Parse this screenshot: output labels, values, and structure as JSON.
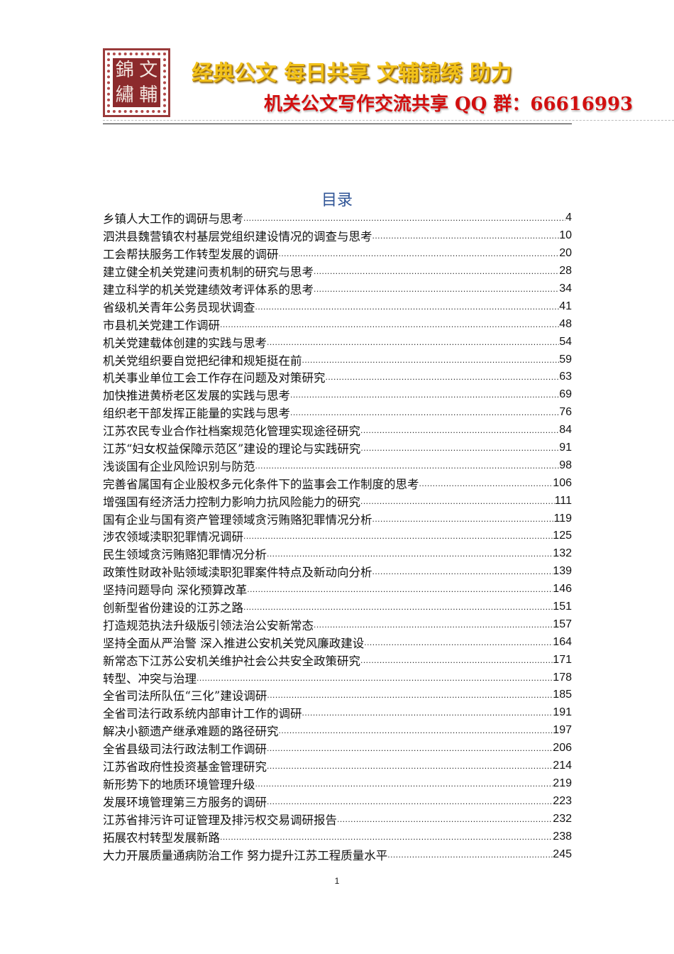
{
  "header": {
    "logo_text": [
      "錦",
      "文",
      "繡",
      "輔"
    ],
    "banner_line1": "经典公文  每日共享  文辅锦绣  助力",
    "banner_line2": "机关公文写作交流共享 QQ 群：66616993",
    "banner_colors": {
      "line1": "#f2c21a",
      "line2": "#d20f0f"
    }
  },
  "toc": {
    "title": "目录",
    "title_color": "#2f5496",
    "entries": [
      {
        "title": "乡镇人大工作的调研与思考",
        "page": "4"
      },
      {
        "title": "泗洪县魏营镇农村基层党组织建设情况的调查与思考",
        "page": "10"
      },
      {
        "title": "工会帮扶服务工作转型发展的调研",
        "page": "20"
      },
      {
        "title": "建立健全机关党建问责机制的研究与思考",
        "page": "28"
      },
      {
        "title": "建立科学的机关党建绩效考评体系的思考",
        "page": "34"
      },
      {
        "title": "省级机关青年公务员现状调查",
        "page": "41"
      },
      {
        "title": "市县机关党建工作调研",
        "page": "48"
      },
      {
        "title": "机关党建载体创建的实践与思考",
        "page": "54"
      },
      {
        "title": "机关党组织要自觉把纪律和规矩挺在前",
        "page": "59"
      },
      {
        "title": "机关事业单位工会工作存在问题及对策研究",
        "page": "63"
      },
      {
        "title": "加快推进黄桥老区发展的实践与思考",
        "page": "69"
      },
      {
        "title": "组织老干部发挥正能量的实践与思考",
        "page": "76"
      },
      {
        "title": "江苏农民专业合作社档案规范化管理实现途径研究",
        "page": "84"
      },
      {
        "title": "江苏“妇女权益保障示范区”建设的理论与实践研究",
        "page": "91"
      },
      {
        "title": "浅谈国有企业风险识别与防范",
        "page": "98"
      },
      {
        "title": "完善省属国有企业股权多元化条件下的监事会工作制度的思考",
        "page": "106"
      },
      {
        "title": "增强国有经济活力控制力影响力抗风险能力的研究",
        "page": "111"
      },
      {
        "title": "国有企业与国有资产管理领域贪污贿赂犯罪情况分析",
        "page": "119"
      },
      {
        "title": "涉农领域渎职犯罪情况调研",
        "page": "125"
      },
      {
        "title": "民生领域贪污贿赂犯罪情况分析",
        "page": "132"
      },
      {
        "title": "政策性财政补贴领域渎职犯罪案件特点及新动向分析",
        "page": "139"
      },
      {
        "title": "坚持问题导向 深化预算改革",
        "page": "146"
      },
      {
        "title": "创新型省份建设的江苏之路",
        "page": "151"
      },
      {
        "title": "打造规范执法升级版引领法治公安新常态",
        "page": "157"
      },
      {
        "title": "坚持全面从严治警 深入推进公安机关党风廉政建设",
        "page": "164"
      },
      {
        "title": "新常态下江苏公安机关维护社会公共安全政策研究",
        "page": "171"
      },
      {
        "title": "转型、冲突与治理",
        "page": "178"
      },
      {
        "title": "全省司法所队伍“三化”建设调研",
        "page": "185"
      },
      {
        "title": "全省司法行政系统内部审计工作的调研",
        "page": "191"
      },
      {
        "title": "解决小额遗产继承难题的路径研究",
        "page": "197"
      },
      {
        "title": "全省县级司法行政法制工作调研",
        "page": "206"
      },
      {
        "title": "江苏省政府性投资基金管理研究",
        "page": "214"
      },
      {
        "title": "新形势下的地质环境管理升级",
        "page": "219"
      },
      {
        "title": "发展环境管理第三方服务的调研",
        "page": "223"
      },
      {
        "title": "江苏省排污许可证管理及排污权交易调研报告",
        "page": "232"
      },
      {
        "title": "拓展农村转型发展新路",
        "page": "238"
      },
      {
        "title": "大力开展质量通病防治工作 努力提升江苏工程质量水平",
        "page": "245"
      }
    ]
  },
  "footer": {
    "page_number": "1"
  }
}
